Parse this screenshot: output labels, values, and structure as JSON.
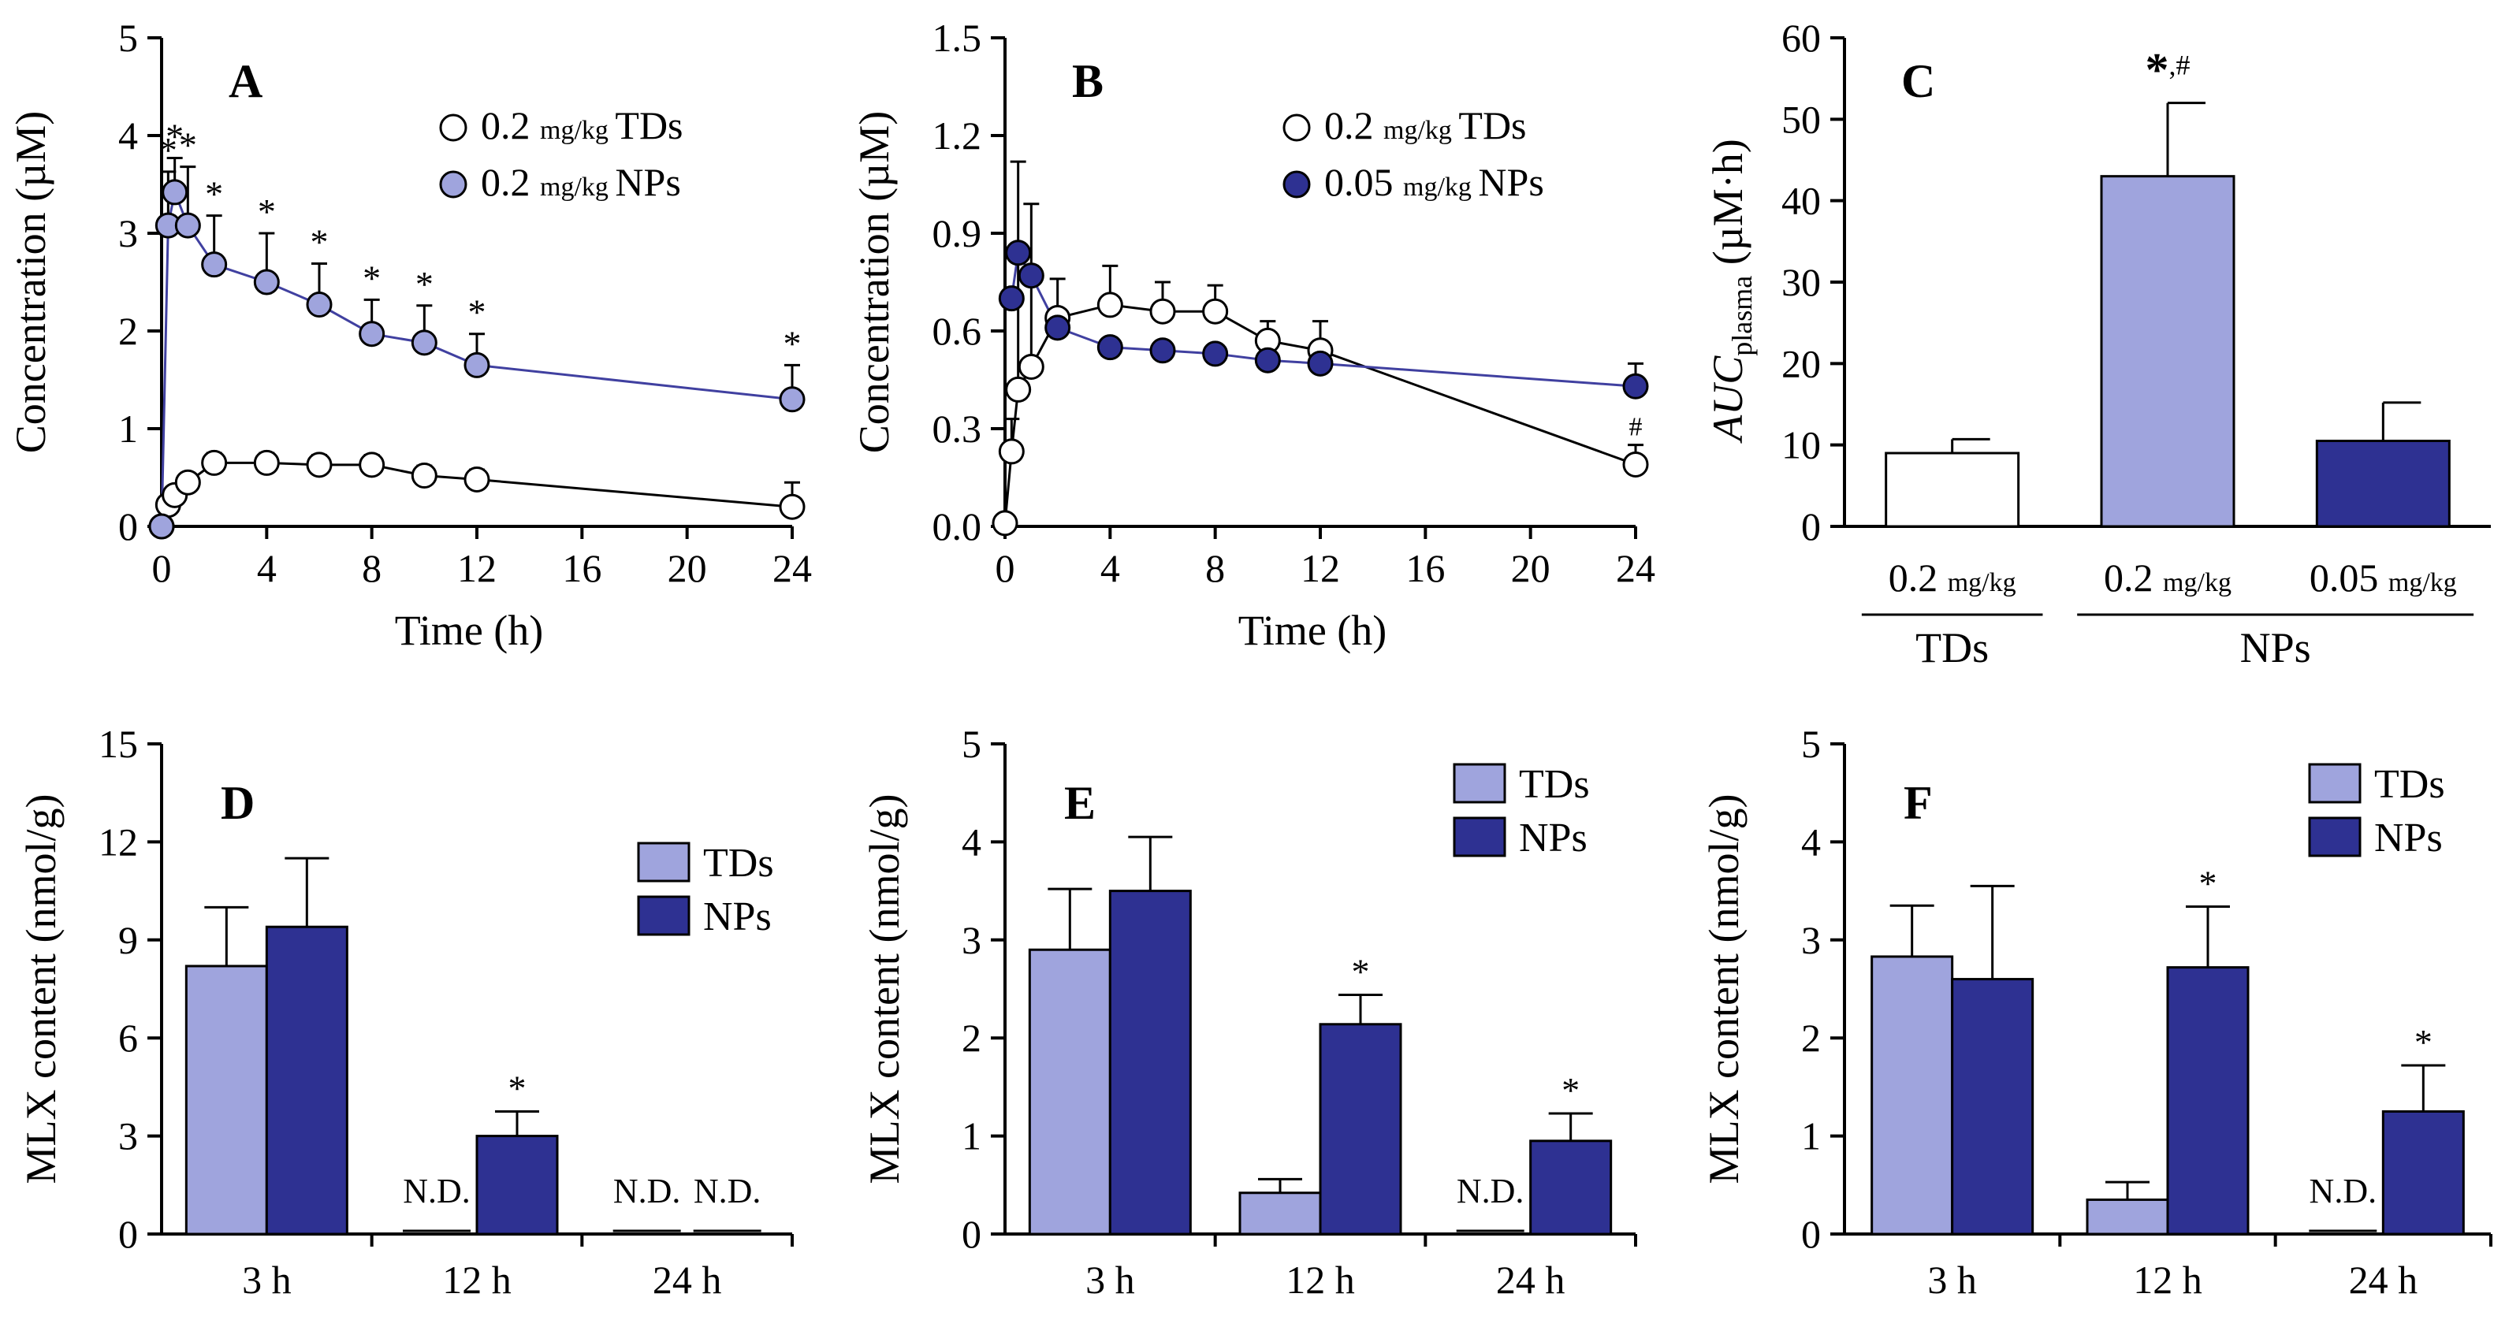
{
  "colors": {
    "np_light": "#9fa4dd",
    "np_dark": "#2e3192",
    "td_line": "#000000",
    "np_line": "#4040a0",
    "td_fill": "#ffffff"
  },
  "chart_data": [
    {
      "id": "A",
      "type": "line",
      "panel_label": "A",
      "xlabel": "Time (h)",
      "ylabel": "Concentration (µM)",
      "xlim": [
        0,
        24
      ],
      "ylim": [
        0,
        5
      ],
      "xticks": [
        "0",
        "4",
        "8",
        "12",
        "16",
        "20",
        "24"
      ],
      "yticks": [
        "0",
        "1",
        "2",
        "3",
        "4",
        "5"
      ],
      "legend": [
        {
          "dose": "0.2",
          "unit": "mg/kg",
          "name": "TDs",
          "style": "open"
        },
        {
          "dose": "0.2",
          "unit": "mg/kg",
          "name": "NPs",
          "style": "light"
        }
      ],
      "series": [
        {
          "name": "0.2 mg/kg TDs",
          "style": "open",
          "x": [
            0,
            0.25,
            0.5,
            1,
            2,
            4,
            6,
            8,
            10,
            12,
            24
          ],
          "y": [
            0,
            0.22,
            0.32,
            0.45,
            0.65,
            0.65,
            0.63,
            0.63,
            0.52,
            0.48,
            0.2
          ],
          "err": [
            0,
            0.06,
            0.07,
            0.09,
            0.1,
            0.1,
            0.1,
            0.1,
            0.1,
            0.1,
            0.25
          ],
          "stars": [
            "",
            "",
            "",
            "",
            "",
            "",
            "",
            "",
            "",
            "",
            ""
          ]
        },
        {
          "name": "0.2 mg/kg NPs",
          "style": "light",
          "x": [
            0,
            0.25,
            0.5,
            1,
            2,
            4,
            6,
            8,
            10,
            12,
            24
          ],
          "y": [
            0,
            3.08,
            3.42,
            3.08,
            2.68,
            2.5,
            2.27,
            1.97,
            1.88,
            1.65,
            1.3
          ],
          "err": [
            0,
            0.55,
            0.35,
            0.6,
            0.5,
            0.5,
            0.42,
            0.35,
            0.38,
            0.32,
            0.35
          ],
          "stars": [
            "",
            "*",
            "*",
            "*",
            "*",
            "*",
            "*",
            "*",
            "*",
            "*",
            "*"
          ]
        }
      ]
    },
    {
      "id": "B",
      "type": "line",
      "panel_label": "B",
      "xlabel": "Time (h)",
      "ylabel": "Concentration (µM)",
      "xlim": [
        0,
        24
      ],
      "ylim": [
        0,
        1.5
      ],
      "xticks": [
        "0",
        "4",
        "8",
        "12",
        "16",
        "20",
        "24"
      ],
      "yticks": [
        "0.0",
        "0.3",
        "0.6",
        "0.9",
        "1.2",
        "1.5"
      ],
      "legend": [
        {
          "dose": "0.2",
          "unit": "mg/kg",
          "name": "TDs",
          "style": "open"
        },
        {
          "dose": "0.05",
          "unit": "mg/kg",
          "name": "NPs",
          "style": "dark"
        }
      ],
      "series": [
        {
          "name": "0.2 mg/kg TDs",
          "style": "open",
          "x": [
            0,
            0.25,
            0.5,
            1,
            2,
            4,
            6,
            8,
            10,
            12,
            24
          ],
          "y": [
            0.01,
            0.23,
            0.42,
            0.49,
            0.64,
            0.68,
            0.66,
            0.66,
            0.57,
            0.54,
            0.19
          ],
          "err": [
            0,
            0.1,
            0.7,
            0.5,
            0.12,
            0.12,
            0.09,
            0.08,
            0.06,
            0.09,
            0.06
          ],
          "stars": [
            "",
            "",
            "",
            "",
            "",
            "",
            "",
            "",
            "",
            "",
            "#"
          ]
        },
        {
          "name": "0.05 mg/kg NPs",
          "style": "dark",
          "x": [
            0.25,
            0.5,
            1,
            2,
            4,
            6,
            8,
            10,
            12,
            24
          ],
          "y": [
            0.7,
            0.84,
            0.77,
            0.61,
            0.55,
            0.54,
            0.53,
            0.51,
            0.5,
            0.43
          ],
          "err": [
            0,
            0,
            0,
            0,
            0,
            0,
            0,
            0,
            0,
            0.07
          ],
          "stars": [
            "",
            "",
            "",
            "",
            "",
            "",
            "",
            "",
            "",
            ""
          ]
        }
      ]
    },
    {
      "id": "C",
      "type": "bar",
      "panel_label": "C",
      "ylabel_main": "AUC",
      "ylabel_sub": "plasma",
      "ylabel_unit": "(µM·h)",
      "ylim": [
        0,
        60
      ],
      "yticks": [
        "0",
        "10",
        "20",
        "30",
        "40",
        "50",
        "60"
      ],
      "categories": [
        {
          "dose": "0.2",
          "unit": "mg/kg"
        },
        {
          "dose": "0.2",
          "unit": "mg/kg"
        },
        {
          "dose": "0.05",
          "unit": "mg/kg"
        }
      ],
      "values": [
        9,
        43,
        10.5
      ],
      "errors": [
        1.7,
        9,
        4.7
      ],
      "styles": [
        "open",
        "light",
        "dark"
      ],
      "annotations": [
        {
          "index": 1,
          "star": "*",
          "hash": ",#"
        }
      ],
      "groups": [
        {
          "label": "TDs",
          "from": 0,
          "to": 0
        },
        {
          "label": "NPs",
          "from": 1,
          "to": 2
        }
      ]
    },
    {
      "id": "D",
      "type": "bar",
      "panel_label": "D",
      "ylabel": "MLX content (nmol/g)",
      "ylim": [
        0,
        15
      ],
      "yticks": [
        "0",
        "3",
        "6",
        "9",
        "12",
        "15"
      ],
      "categories": [
        "3 h",
        "12 h",
        "24 h"
      ],
      "legend": [
        "TDs",
        "NPs"
      ],
      "series": [
        {
          "name": "TDs",
          "style": "light",
          "values": [
            8.2,
            0,
            0
          ],
          "errors": [
            1.8,
            0,
            0
          ],
          "labels": [
            "",
            "N.D.",
            "N.D."
          ],
          "stars": [
            "",
            "",
            ""
          ]
        },
        {
          "name": "NPs",
          "style": "dark",
          "values": [
            9.4,
            3.0,
            0
          ],
          "errors": [
            2.1,
            0.75,
            0
          ],
          "labels": [
            "",
            "",
            "N.D."
          ],
          "stars": [
            "",
            "*",
            ""
          ]
        }
      ]
    },
    {
      "id": "E",
      "type": "bar",
      "panel_label": "E",
      "ylabel": "MLX content (nmol/g)",
      "ylim": [
        0,
        5
      ],
      "yticks": [
        "0",
        "1",
        "2",
        "3",
        "4",
        "5"
      ],
      "categories": [
        "3 h",
        "12 h",
        "24 h"
      ],
      "legend": [
        "TDs",
        "NPs"
      ],
      "series": [
        {
          "name": "TDs",
          "style": "light",
          "values": [
            2.9,
            0.42,
            0
          ],
          "errors": [
            0.62,
            0.14,
            0
          ],
          "labels": [
            "",
            "",
            "N.D."
          ],
          "stars": [
            "",
            "",
            ""
          ]
        },
        {
          "name": "NPs",
          "style": "dark",
          "values": [
            3.5,
            2.14,
            0.95
          ],
          "errors": [
            0.55,
            0.3,
            0.28
          ],
          "labels": [
            "",
            "",
            ""
          ],
          "stars": [
            "",
            "*",
            "*"
          ]
        }
      ]
    },
    {
      "id": "F",
      "type": "bar",
      "panel_label": "F",
      "ylabel": "MLX content (nmol/g)",
      "ylim": [
        0,
        5
      ],
      "yticks": [
        "0",
        "1",
        "2",
        "3",
        "4",
        "5"
      ],
      "categories": [
        "3 h",
        "12 h",
        "24 h"
      ],
      "legend": [
        "TDs",
        "NPs"
      ],
      "series": [
        {
          "name": "TDs",
          "style": "light",
          "values": [
            2.83,
            0.35,
            0
          ],
          "errors": [
            0.52,
            0.18,
            0
          ],
          "labels": [
            "",
            "",
            "N.D."
          ],
          "stars": [
            "",
            "",
            ""
          ]
        },
        {
          "name": "NPs",
          "style": "dark",
          "values": [
            2.6,
            2.72,
            1.25
          ],
          "errors": [
            0.95,
            0.62,
            0.47
          ],
          "labels": [
            "",
            "",
            ""
          ],
          "stars": [
            "",
            "*",
            "*"
          ]
        }
      ]
    }
  ]
}
